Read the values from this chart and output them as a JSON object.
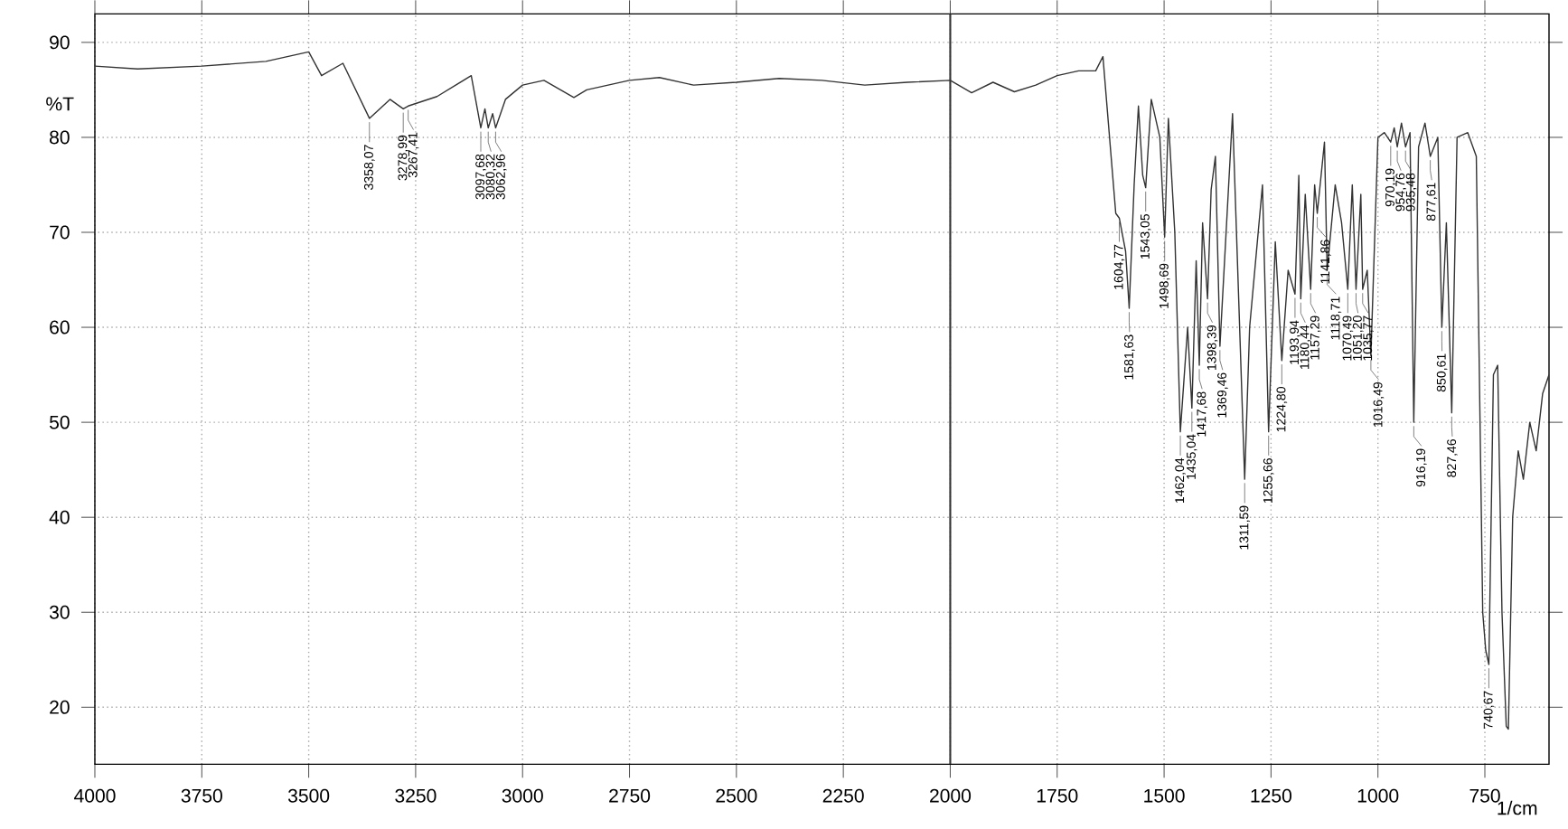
{
  "chart_data": {
    "type": "line",
    "xlabel": "1/cm",
    "ylabel": "%T",
    "color": "#333333",
    "marker": "none",
    "grid": true,
    "xlim": [
      4000,
      600
    ],
    "ylim": [
      14,
      93
    ],
    "xticks": [
      4000,
      3750,
      3500,
      3250,
      3000,
      2750,
      2500,
      2250,
      2000,
      1750,
      1500,
      1250,
      1000,
      750
    ],
    "yticks": [
      20,
      30,
      40,
      50,
      60,
      70,
      80,
      90
    ],
    "ref_lines": [
      {
        "axis": "x",
        "value": 2000,
        "color": "#333333"
      }
    ],
    "x": [
      4000,
      3900,
      3750,
      3600,
      3500,
      3470,
      3420,
      3358.07,
      3310,
      3278.99,
      3267.41,
      3200,
      3120,
      3097.68,
      3088,
      3080.32,
      3070,
      3062.96,
      3040,
      3000,
      2950,
      2880,
      2850,
      2750,
      2680,
      2600,
      2500,
      2400,
      2300,
      2200,
      2100,
      2000,
      1950,
      1900,
      1850,
      1800,
      1750,
      1700,
      1660,
      1643,
      1613,
      1604.77,
      1590,
      1581.63,
      1570,
      1560,
      1550,
      1543.05,
      1530,
      1510,
      1498.69,
      1490,
      1475,
      1462.04,
      1445,
      1435.04,
      1425,
      1417.68,
      1410,
      1398.39,
      1390,
      1380,
      1369.46,
      1340,
      1311.59,
      1300,
      1270,
      1255.66,
      1240,
      1224.8,
      1210,
      1193.94,
      1185,
      1180.44,
      1170,
      1157.29,
      1148,
      1141.86,
      1125,
      1118.71,
      1100,
      1085,
      1070.49,
      1060,
      1051.2,
      1040,
      1035.77,
      1025,
      1016.49,
      1000,
      985,
      970.19,
      962,
      954.76,
      945,
      935.48,
      925,
      916.19,
      905,
      890,
      877.61,
      860,
      850.61,
      840,
      827.46,
      815,
      790,
      770,
      755,
      748,
      740.67,
      730,
      720,
      710,
      700,
      695,
      685,
      672,
      660,
      645,
      630,
      615,
      600
    ],
    "values": [
      87.5,
      87.2,
      87.5,
      88,
      89,
      86.5,
      87.8,
      82,
      84,
      83,
      83.3,
      84.3,
      86.5,
      81,
      83,
      81,
      82.5,
      81,
      84,
      85.5,
      86,
      84.2,
      85,
      86,
      86.3,
      85.5,
      85.8,
      86.2,
      86,
      85.5,
      85.8,
      86,
      84.7,
      85.8,
      84.8,
      85.5,
      86.5,
      87,
      87,
      88.5,
      72,
      71.5,
      68,
      62,
      75,
      83.3,
      76,
      74.7,
      84,
      80,
      69.5,
      82,
      70,
      49,
      60,
      51.5,
      67,
      56,
      71,
      63,
      74.5,
      78,
      58,
      82.5,
      44,
      60,
      75,
      49,
      69,
      56.5,
      66,
      63.5,
      76,
      63,
      74,
      64,
      75,
      72,
      79.5,
      66,
      75,
      71,
      64,
      75,
      64,
      74,
      64,
      66,
      57,
      80,
      80.5,
      79.5,
      81,
      79,
      81.5,
      79,
      80.5,
      50,
      79,
      81.5,
      78,
      80,
      60,
      71,
      51,
      80,
      80.5,
      78,
      30,
      26,
      24.5,
      55,
      56,
      30,
      18,
      17.7,
      40,
      47,
      44,
      50,
      47,
      53,
      55
    ],
    "annotations": [
      {
        "text": "3358,07",
        "x": 3358.07,
        "y": 82
      },
      {
        "text": "3278,99",
        "x": 3278.99,
        "y": 83
      },
      {
        "text": "3267,41",
        "x": 3267.41,
        "y": 83.3
      },
      {
        "text": "3097,68",
        "x": 3097.68,
        "y": 81
      },
      {
        "text": "3080,32",
        "x": 3080.32,
        "y": 81
      },
      {
        "text": "3062,96",
        "x": 3062.96,
        "y": 81
      },
      {
        "text": "1604,77",
        "x": 1604.77,
        "y": 71.5
      },
      {
        "text": "1581,63",
        "x": 1581.63,
        "y": 62
      },
      {
        "text": "1543,05",
        "x": 1543.05,
        "y": 74.7
      },
      {
        "text": "1498,69",
        "x": 1498.69,
        "y": 69.5
      },
      {
        "text": "1462,04",
        "x": 1462.04,
        "y": 49
      },
      {
        "text": "1435,04",
        "x": 1435.04,
        "y": 51.5
      },
      {
        "text": "1417,68",
        "x": 1417.68,
        "y": 56
      },
      {
        "text": "1398,39",
        "x": 1398.39,
        "y": 63
      },
      {
        "text": "1369,46",
        "x": 1369.46,
        "y": 58
      },
      {
        "text": "1311,59",
        "x": 1311.59,
        "y": 44
      },
      {
        "text": "1255,66",
        "x": 1255.66,
        "y": 49
      },
      {
        "text": "1224,80",
        "x": 1224.8,
        "y": 56.5
      },
      {
        "text": "1193,94",
        "x": 1193.94,
        "y": 63.5
      },
      {
        "text": "1180,44",
        "x": 1180.44,
        "y": 63
      },
      {
        "text": "1157,29",
        "x": 1157.29,
        "y": 64
      },
      {
        "text": "1141,86",
        "x": 1141.86,
        "y": 72
      },
      {
        "text": "1118,71",
        "x": 1118.71,
        "y": 66
      },
      {
        "text": "1070,49",
        "x": 1070.49,
        "y": 64
      },
      {
        "text": "1051,20",
        "x": 1051.2,
        "y": 64
      },
      {
        "text": "1035,77",
        "x": 1035.77,
        "y": 64
      },
      {
        "text": "1016,49",
        "x": 1016.49,
        "y": 57
      },
      {
        "text": "970,19",
        "x": 970.19,
        "y": 79.5
      },
      {
        "text": "954,76",
        "x": 954.76,
        "y": 79
      },
      {
        "text": "935,48",
        "x": 935.48,
        "y": 79
      },
      {
        "text": "916,19",
        "x": 916.19,
        "y": 50
      },
      {
        "text": "877,61",
        "x": 877.61,
        "y": 78
      },
      {
        "text": "850,61",
        "x": 850.61,
        "y": 60
      },
      {
        "text": "827,46",
        "x": 827.46,
        "y": 51
      },
      {
        "text": "740,67",
        "x": 740.67,
        "y": 24.5
      }
    ]
  }
}
